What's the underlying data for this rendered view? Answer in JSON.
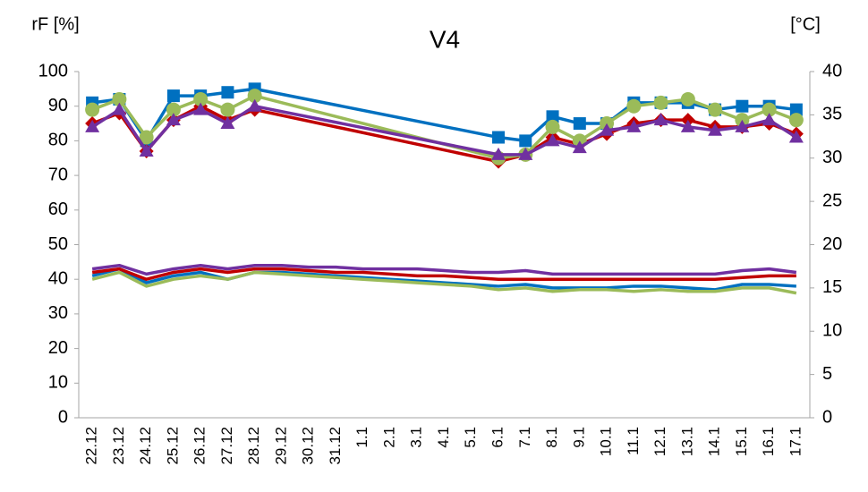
{
  "chart_data": {
    "type": "line",
    "title": "V4",
    "y_label": "rF [%]",
    "y2_label": "[°C]",
    "categories": [
      "22.12",
      "23.12",
      "24.12",
      "25.12",
      "26.12",
      "27.12",
      "28.12",
      "29.12",
      "30.12",
      "31.12",
      "1.1",
      "2.1",
      "3.1",
      "4.1",
      "5.1",
      "6.1",
      "7.1",
      "8.1",
      "9.1",
      "10.1",
      "11.1",
      "12.1",
      "13.1",
      "14.1",
      "15.1",
      "16.1",
      "17.1"
    ],
    "ylim": [
      0,
      100
    ],
    "yticks": [
      0,
      10,
      20,
      30,
      40,
      50,
      60,
      70,
      80,
      90,
      100
    ],
    "y2lim": [
      0,
      40
    ],
    "y2ticks": [
      0,
      5,
      10,
      15,
      20,
      25,
      30,
      35,
      40
    ],
    "grid": false,
    "span_gaps": true,
    "series": [
      {
        "color": "#0070c0",
        "marker": "square",
        "values": [
          91,
          92,
          80,
          93,
          93,
          94,
          95,
          null,
          null,
          null,
          null,
          null,
          null,
          null,
          null,
          81,
          80,
          87,
          85,
          85,
          91,
          91,
          91,
          89,
          90,
          90,
          89
        ]
      },
      {
        "color": "#c00000",
        "marker": "diamond",
        "values": [
          85,
          88,
          77,
          86,
          90,
          86,
          89,
          null,
          null,
          null,
          null,
          null,
          null,
          null,
          null,
          74,
          76,
          81,
          79,
          82,
          85,
          86,
          86,
          84,
          84,
          85,
          82
        ]
      },
      {
        "color": "#9bbb59",
        "marker": "circle",
        "values": [
          89,
          92,
          81,
          89,
          92,
          89,
          93,
          null,
          null,
          null,
          null,
          null,
          null,
          null,
          null,
          75,
          76,
          84,
          80,
          85,
          90,
          91,
          92,
          89,
          86,
          89,
          86
        ]
      },
      {
        "color": "#7030a0",
        "marker": "triangle",
        "values": [
          84,
          89,
          77,
          86,
          89,
          85,
          90,
          null,
          null,
          null,
          null,
          null,
          null,
          null,
          null,
          76,
          76,
          80,
          78,
          83,
          84,
          86,
          84,
          83,
          84,
          86,
          81
        ]
      },
      {
        "color": "#0070c0",
        "axis": "y2",
        "values": [
          16.4,
          17.2,
          15.6,
          16.4,
          16.8,
          16.0,
          16.8,
          16.8,
          16.6,
          16.4,
          16.2,
          16.0,
          15.8,
          15.6,
          15.4,
          15.2,
          15.4,
          15.0,
          15.0,
          15.0,
          15.2,
          15.2,
          15.0,
          14.8,
          15.4,
          15.4,
          15.2
        ]
      },
      {
        "color": "#c00000",
        "axis": "y2",
        "values": [
          16.8,
          17.2,
          16.0,
          16.8,
          17.2,
          16.8,
          17.2,
          17.2,
          17.0,
          16.8,
          16.8,
          16.6,
          16.4,
          16.4,
          16.2,
          16.0,
          16.0,
          16.0,
          16.0,
          16.0,
          16.0,
          16.0,
          16.0,
          16.0,
          16.2,
          16.4,
          16.4
        ]
      },
      {
        "color": "#9bbb59",
        "axis": "y2",
        "values": [
          16.0,
          16.8,
          15.2,
          16.0,
          16.4,
          16.0,
          16.8,
          16.6,
          16.4,
          16.2,
          16.0,
          15.8,
          15.6,
          15.4,
          15.2,
          14.8,
          15.0,
          14.6,
          14.8,
          14.8,
          14.6,
          14.8,
          14.6,
          14.6,
          15.0,
          15.0,
          14.4
        ]
      },
      {
        "color": "#7030a0",
        "axis": "y2",
        "values": [
          17.2,
          17.6,
          16.6,
          17.2,
          17.6,
          17.2,
          17.6,
          17.6,
          17.4,
          17.4,
          17.2,
          17.2,
          17.2,
          17.0,
          16.8,
          16.8,
          17.0,
          16.6,
          16.6,
          16.6,
          16.6,
          16.6,
          16.6,
          16.6,
          17.0,
          17.2,
          16.8
        ]
      }
    ]
  }
}
